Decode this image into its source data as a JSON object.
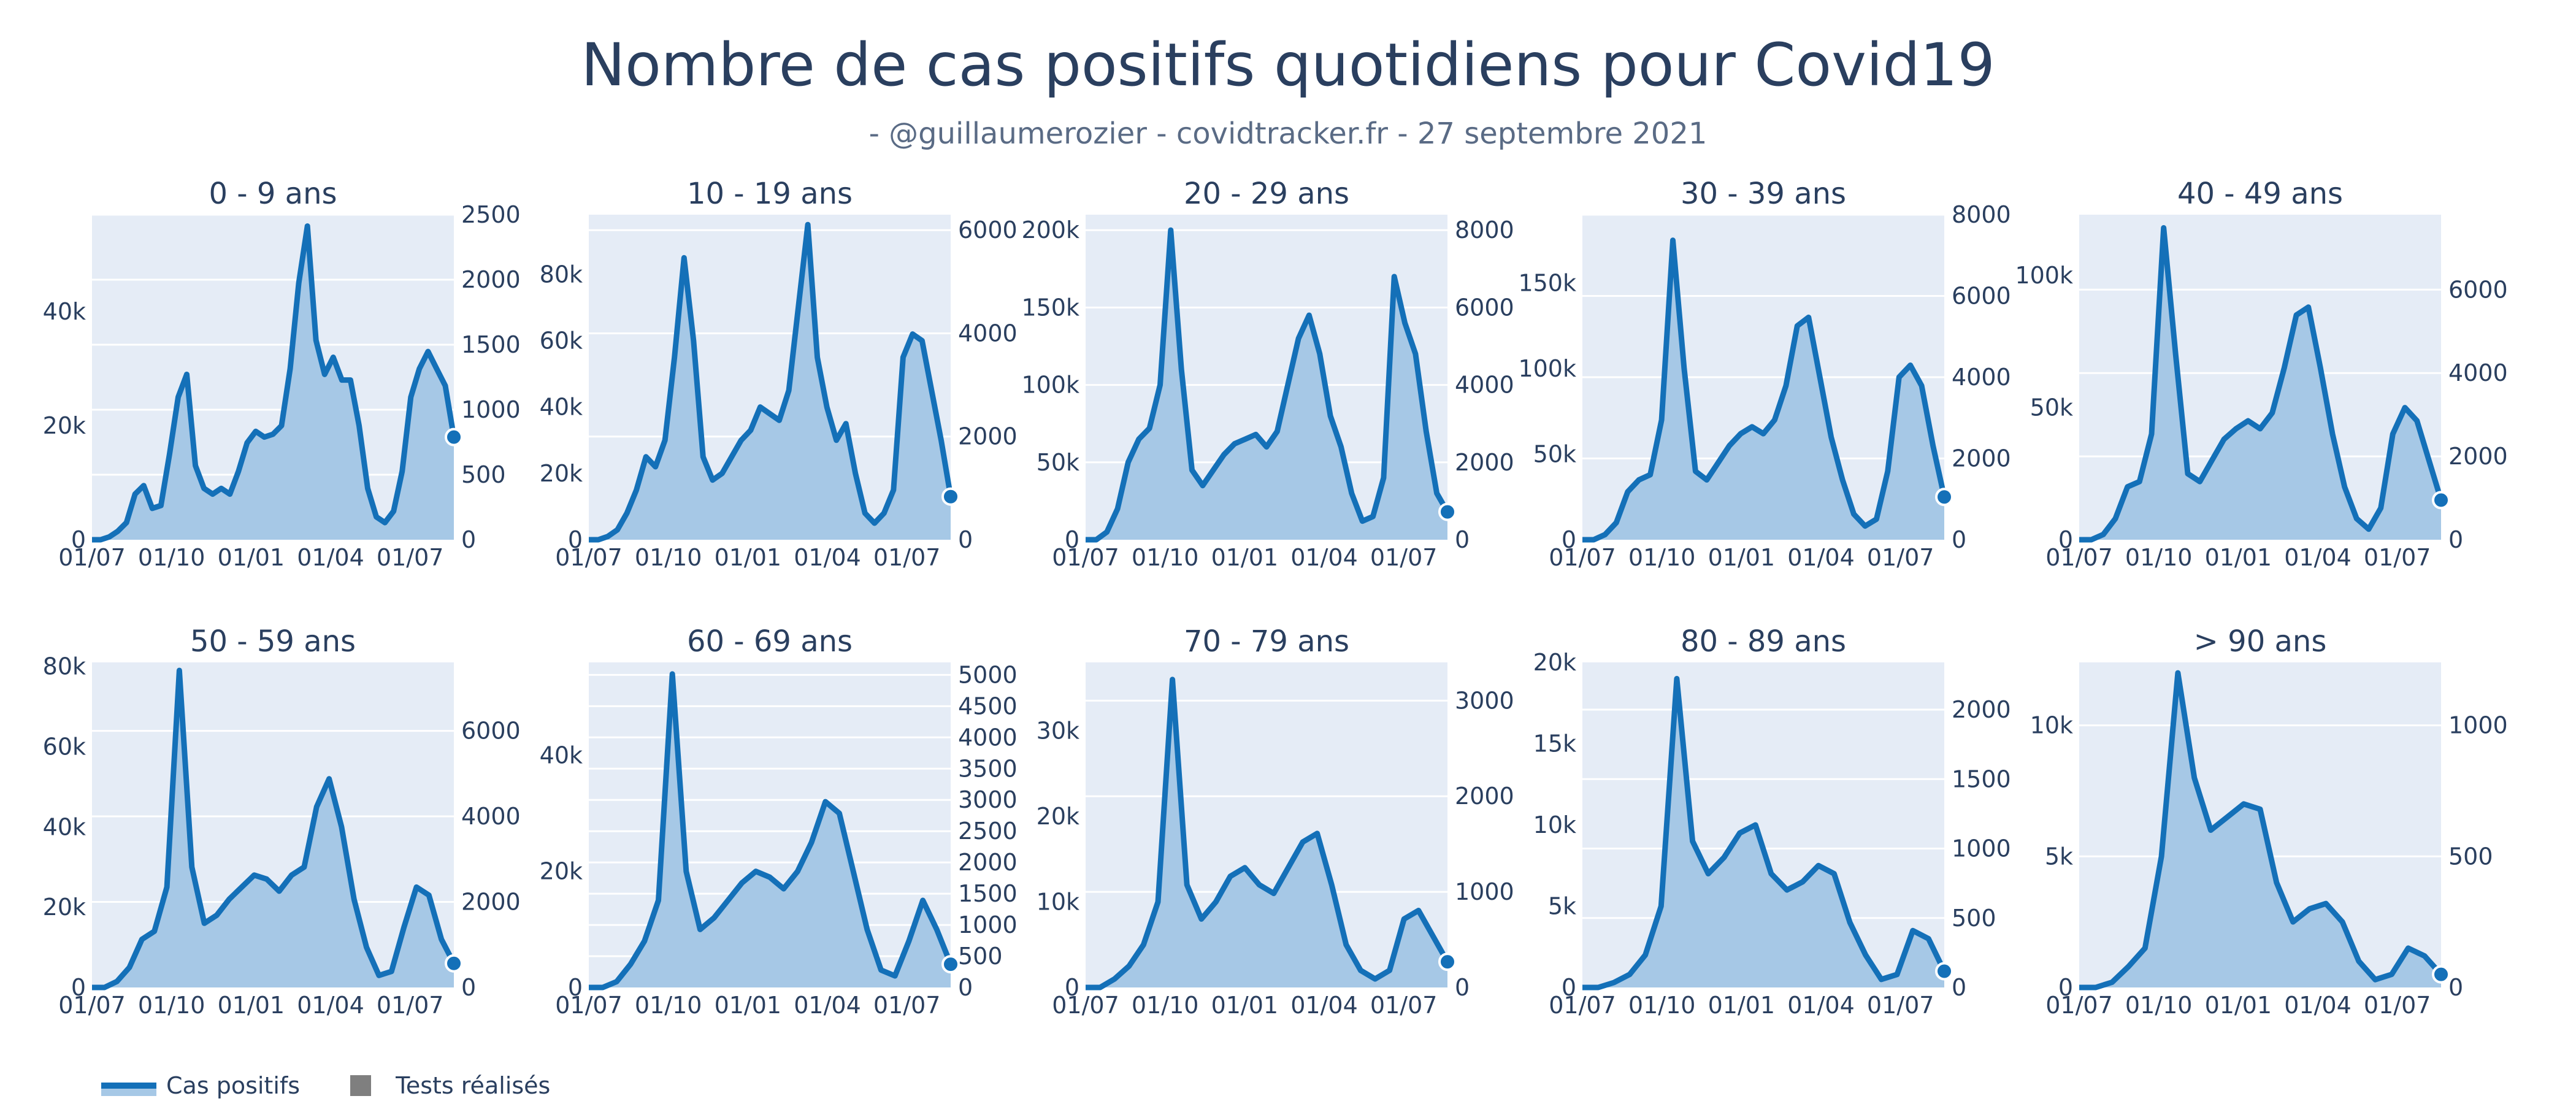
{
  "title": "Nombre de cas positifs quotidiens pour Covid19",
  "subtitle": "- @guillaumerozier - covidtracker.fr - 27 septembre 2021",
  "legend": {
    "cases": "Cas positifs",
    "tests": "Tests réalisés"
  },
  "colors": {
    "line": "#1470b8",
    "fill": "#a6c8e6",
    "plot_bg": "#e5ecf6",
    "text": "#2a3f5f",
    "tests": "#7f7f7f"
  },
  "chart_data": [
    {
      "type": "area",
      "title": "0 - 9 ans",
      "x_ticks": [
        "01/07",
        "01/10",
        "01/01",
        "01/04",
        "01/07"
      ],
      "y_ticks": [
        {
          "v": 0,
          "t": "0"
        },
        {
          "v": 20000,
          "t": "20k"
        },
        {
          "v": 40000,
          "t": "40k"
        }
      ],
      "ylim": [
        0,
        57000
      ],
      "y2_ticks": [
        {
          "v": 0,
          "t": "0"
        },
        {
          "v": 500,
          "t": "500"
        },
        {
          "v": 1000,
          "t": "1000"
        },
        {
          "v": 1500,
          "t": "1500"
        },
        {
          "v": 2000,
          "t": "2000"
        },
        {
          "v": 2500,
          "t": "2500"
        }
      ],
      "y2lim": [
        0,
        2500
      ],
      "values": [
        0,
        0,
        500,
        1500,
        3000,
        8000,
        9500,
        5500,
        6000,
        15000,
        25000,
        29000,
        13000,
        9000,
        8000,
        9000,
        8000,
        12000,
        17000,
        19000,
        18000,
        18500,
        20000,
        30000,
        45000,
        55000,
        35000,
        29000,
        32000,
        28000,
        28000,
        20000,
        9000,
        4000,
        3000,
        5000,
        12000,
        25000,
        30000,
        33000,
        30000,
        27000,
        18000
      ]
    },
    {
      "type": "area",
      "title": "10 - 19 ans",
      "x_ticks": [
        "01/07",
        "01/10",
        "01/01",
        "01/04",
        "01/07"
      ],
      "y_ticks": [
        {
          "v": 0,
          "t": "0"
        },
        {
          "v": 20000,
          "t": "20k"
        },
        {
          "v": 40000,
          "t": "40k"
        },
        {
          "v": 60000,
          "t": "60k"
        },
        {
          "v": 80000,
          "t": "80k"
        }
      ],
      "ylim": [
        0,
        98000
      ],
      "y2_ticks": [
        {
          "v": 0,
          "t": "0"
        },
        {
          "v": 2000,
          "t": "2000"
        },
        {
          "v": 4000,
          "t": "4000"
        },
        {
          "v": 6000,
          "t": "6000"
        }
      ],
      "y2lim": [
        0,
        6300
      ],
      "values": [
        0,
        0,
        1000,
        3000,
        8000,
        15000,
        25000,
        22000,
        30000,
        55000,
        85000,
        60000,
        25000,
        18000,
        20000,
        25000,
        30000,
        33000,
        40000,
        38000,
        36000,
        45000,
        70000,
        95000,
        55000,
        40000,
        30000,
        35000,
        20000,
        8000,
        5000,
        8000,
        15000,
        55000,
        62000,
        60000,
        45000,
        30000,
        13000
      ]
    },
    {
      "type": "area",
      "title": "20 - 29 ans",
      "x_ticks": [
        "01/07",
        "01/10",
        "01/01",
        "01/04",
        "01/07"
      ],
      "y_ticks": [
        {
          "v": 0,
          "t": "0"
        },
        {
          "v": 50000,
          "t": "50k"
        },
        {
          "v": 100000,
          "t": "100k"
        },
        {
          "v": 150000,
          "t": "150k"
        },
        {
          "v": 200000,
          "t": "200k"
        }
      ],
      "ylim": [
        0,
        210000
      ],
      "y2_ticks": [
        {
          "v": 0,
          "t": "0"
        },
        {
          "v": 2000,
          "t": "2000"
        },
        {
          "v": 4000,
          "t": "4000"
        },
        {
          "v": 6000,
          "t": "6000"
        },
        {
          "v": 8000,
          "t": "8000"
        }
      ],
      "y2lim": [
        0,
        8400
      ],
      "values": [
        0,
        0,
        5000,
        20000,
        50000,
        65000,
        72000,
        100000,
        200000,
        110000,
        45000,
        35000,
        45000,
        55000,
        62000,
        65000,
        68000,
        60000,
        70000,
        100000,
        130000,
        145000,
        120000,
        80000,
        60000,
        30000,
        12000,
        15000,
        40000,
        170000,
        140000,
        120000,
        70000,
        30000,
        18000
      ]
    },
    {
      "type": "area",
      "title": "30 - 39 ans",
      "x_ticks": [
        "01/07",
        "01/10",
        "01/01",
        "01/04",
        "01/07"
      ],
      "y_ticks": [
        {
          "v": 0,
          "t": "0"
        },
        {
          "v": 50000,
          "t": "50k"
        },
        {
          "v": 100000,
          "t": "100k"
        },
        {
          "v": 150000,
          "t": "150k"
        }
      ],
      "ylim": [
        0,
        190000
      ],
      "y2_ticks": [
        {
          "v": 0,
          "t": "0"
        },
        {
          "v": 2000,
          "t": "2000"
        },
        {
          "v": 4000,
          "t": "4000"
        },
        {
          "v": 6000,
          "t": "6000"
        },
        {
          "v": 8000,
          "t": "8000"
        }
      ],
      "y2lim": [
        0,
        8000
      ],
      "values": [
        0,
        0,
        3000,
        10000,
        28000,
        35000,
        38000,
        70000,
        175000,
        100000,
        40000,
        35000,
        45000,
        55000,
        62000,
        66000,
        62000,
        70000,
        90000,
        125000,
        130000,
        95000,
        60000,
        35000,
        15000,
        8000,
        12000,
        40000,
        95000,
        102000,
        90000,
        55000,
        25000
      ]
    },
    {
      "type": "area",
      "title": "40 - 49 ans",
      "x_ticks": [
        "01/07",
        "01/10",
        "01/01",
        "01/04",
        "01/07"
      ],
      "y_ticks": [
        {
          "v": 0,
          "t": "0"
        },
        {
          "v": 50000,
          "t": "50k"
        },
        {
          "v": 100000,
          "t": "100k"
        }
      ],
      "ylim": [
        0,
        123000
      ],
      "y2_ticks": [
        {
          "v": 0,
          "t": "0"
        },
        {
          "v": 2000,
          "t": "2000"
        },
        {
          "v": 4000,
          "t": "4000"
        },
        {
          "v": 6000,
          "t": "6000"
        }
      ],
      "y2lim": [
        0,
        7800
      ],
      "values": [
        0,
        0,
        2000,
        8000,
        20000,
        22000,
        40000,
        118000,
        70000,
        25000,
        22000,
        30000,
        38000,
        42000,
        45000,
        42000,
        48000,
        65000,
        85000,
        88000,
        65000,
        40000,
        20000,
        8000,
        4000,
        12000,
        40000,
        50000,
        45000,
        30000,
        15000
      ]
    },
    {
      "type": "area",
      "title": "50 - 59 ans",
      "x_ticks": [
        "01/07",
        "01/10",
        "01/01",
        "01/04",
        "01/07"
      ],
      "y_ticks": [
        {
          "v": 0,
          "t": "0"
        },
        {
          "v": 20000,
          "t": "20k"
        },
        {
          "v": 40000,
          "t": "40k"
        },
        {
          "v": 60000,
          "t": "60k"
        },
        {
          "v": 80000,
          "t": "80k"
        }
      ],
      "ylim": [
        0,
        81000
      ],
      "y2_ticks": [
        {
          "v": 0,
          "t": "0"
        },
        {
          "v": 2000,
          "t": "2000"
        },
        {
          "v": 4000,
          "t": "4000"
        },
        {
          "v": 6000,
          "t": "6000"
        }
      ],
      "y2lim": [
        0,
        7600
      ],
      "values": [
        0,
        0,
        1500,
        5000,
        12000,
        14000,
        25000,
        79000,
        30000,
        16000,
        18000,
        22000,
        25000,
        28000,
        27000,
        24000,
        28000,
        30000,
        45000,
        52000,
        40000,
        22000,
        10000,
        3000,
        4000,
        15000,
        25000,
        23000,
        12000,
        6000
      ]
    },
    {
      "type": "area",
      "title": "60 - 69 ans",
      "x_ticks": [
        "01/07",
        "01/10",
        "01/01",
        "01/04",
        "01/07"
      ],
      "y_ticks": [
        {
          "v": 0,
          "t": "0"
        },
        {
          "v": 20000,
          "t": "20k"
        },
        {
          "v": 40000,
          "t": "40k"
        }
      ],
      "ylim": [
        0,
        56000
      ],
      "y2_ticks": [
        {
          "v": 0,
          "t": "0"
        },
        {
          "v": 500,
          "t": "500"
        },
        {
          "v": 1000,
          "t": "1000"
        },
        {
          "v": 1500,
          "t": "1500"
        },
        {
          "v": 2000,
          "t": "2000"
        },
        {
          "v": 2500,
          "t": "2500"
        },
        {
          "v": 3000,
          "t": "3000"
        },
        {
          "v": 3500,
          "t": "3500"
        },
        {
          "v": 4000,
          "t": "4000"
        },
        {
          "v": 4500,
          "t": "4500"
        },
        {
          "v": 5000,
          "t": "5000"
        }
      ],
      "y2lim": [
        0,
        5200
      ],
      "values": [
        0,
        0,
        1000,
        4000,
        8000,
        15000,
        54000,
        20000,
        10000,
        12000,
        15000,
        18000,
        20000,
        19000,
        17000,
        20000,
        25000,
        32000,
        30000,
        20000,
        10000,
        3000,
        2000,
        8000,
        15000,
        10000,
        4000
      ]
    },
    {
      "type": "area",
      "title": "70 - 79 ans",
      "x_ticks": [
        "01/07",
        "01/10",
        "01/01",
        "01/04",
        "01/07"
      ],
      "y_ticks": [
        {
          "v": 0,
          "t": "0"
        },
        {
          "v": 10000,
          "t": "10k"
        },
        {
          "v": 20000,
          "t": "20k"
        },
        {
          "v": 30000,
          "t": "30k"
        }
      ],
      "ylim": [
        0,
        38000
      ],
      "y2_ticks": [
        {
          "v": 0,
          "t": "0"
        },
        {
          "v": 1000,
          "t": "1000"
        },
        {
          "v": 2000,
          "t": "2000"
        },
        {
          "v": 3000,
          "t": "3000"
        }
      ],
      "y2lim": [
        0,
        3400
      ],
      "values": [
        0,
        0,
        1000,
        2500,
        5000,
        10000,
        36000,
        12000,
        8000,
        10000,
        13000,
        14000,
        12000,
        11000,
        14000,
        17000,
        18000,
        12000,
        5000,
        2000,
        1000,
        2000,
        8000,
        9000,
        6000,
        3000
      ]
    },
    {
      "type": "area",
      "title": "80 - 89 ans",
      "x_ticks": [
        "01/07",
        "01/10",
        "01/01",
        "01/04",
        "01/07"
      ],
      "y_ticks": [
        {
          "v": 0,
          "t": "0"
        },
        {
          "v": 5000,
          "t": "5k"
        },
        {
          "v": 10000,
          "t": "10k"
        },
        {
          "v": 15000,
          "t": "15k"
        },
        {
          "v": 20000,
          "t": "20k"
        }
      ],
      "ylim": [
        0,
        20000
      ],
      "y2_ticks": [
        {
          "v": 0,
          "t": "0"
        },
        {
          "v": 500,
          "t": "500"
        },
        {
          "v": 1000,
          "t": "1000"
        },
        {
          "v": 1500,
          "t": "1500"
        },
        {
          "v": 2000,
          "t": "2000"
        }
      ],
      "y2lim": [
        0,
        2340
      ],
      "values": [
        0,
        0,
        300,
        800,
        2000,
        5000,
        19000,
        9000,
        7000,
        8000,
        9500,
        10000,
        7000,
        6000,
        6500,
        7500,
        7000,
        4000,
        2000,
        500,
        800,
        3500,
        3000,
        1000
      ]
    },
    {
      "type": "area",
      "title": "> 90 ans",
      "x_ticks": [
        "01/07",
        "01/10",
        "01/01",
        "01/04",
        "01/07"
      ],
      "y_ticks": [
        {
          "v": 0,
          "t": "0"
        },
        {
          "v": 5000,
          "t": "5k"
        },
        {
          "v": 10000,
          "t": "10k"
        }
      ],
      "ylim": [
        0,
        12400
      ],
      "y2_ticks": [
        {
          "v": 0,
          "t": "0"
        },
        {
          "v": 500,
          "t": "500"
        },
        {
          "v": 1000,
          "t": "1000"
        }
      ],
      "y2lim": [
        0,
        1240
      ],
      "values": [
        0,
        0,
        200,
        800,
        1500,
        5000,
        12000,
        8000,
        6000,
        6500,
        7000,
        6800,
        4000,
        2500,
        3000,
        3200,
        2500,
        1000,
        300,
        500,
        1500,
        1200,
        500
      ]
    }
  ]
}
